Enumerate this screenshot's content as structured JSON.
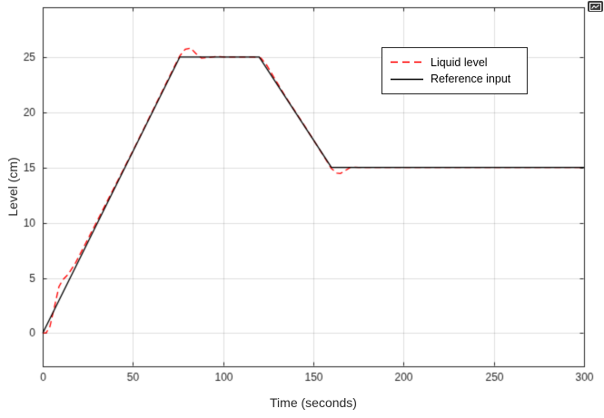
{
  "figure": {
    "background": "#ffffff",
    "popout_icon": "mini-chart-popout-icon"
  },
  "chart_data": {
    "type": "line",
    "title": "",
    "xlabel": "Time (seconds)",
    "ylabel": "Level (cm)",
    "xlim": [
      0,
      300
    ],
    "ylim": [
      -3,
      29.5
    ],
    "xticks": [
      0,
      50,
      100,
      150,
      200,
      250,
      300
    ],
    "yticks": [
      0,
      5,
      10,
      15,
      20,
      25
    ],
    "grid": true,
    "axis_color": "#262626",
    "grid_color": "rgba(38,38,38,0.15)",
    "legend": {
      "position": "upper-right-inside",
      "entries": [
        {
          "label": "Liquid level",
          "color": "#ff0000",
          "style": "dashed"
        },
        {
          "label": "Reference input",
          "color": "#000000",
          "style": "solid"
        }
      ]
    },
    "series": [
      {
        "name": "Liquid level",
        "color": "#ff0000",
        "style": "dashed",
        "points": [
          [
            0,
            0
          ],
          [
            2,
            0.05
          ],
          [
            4,
            0.6
          ],
          [
            6,
            2.0
          ],
          [
            9,
            4.2
          ],
          [
            11,
            4.8
          ],
          [
            14,
            5.3
          ],
          [
            18,
            6.3
          ],
          [
            25,
            8.5
          ],
          [
            50,
            16.5
          ],
          [
            72,
            23.8
          ],
          [
            76,
            25.1
          ],
          [
            79,
            25.7
          ],
          [
            82,
            25.8
          ],
          [
            85,
            25.3
          ],
          [
            88,
            24.9
          ],
          [
            92,
            24.95
          ],
          [
            96,
            25.05
          ],
          [
            101,
            25
          ],
          [
            117,
            25
          ],
          [
            121,
            24.9
          ],
          [
            124,
            24.3
          ],
          [
            128,
            23.2
          ],
          [
            135,
            21.3
          ],
          [
            145,
            18.8
          ],
          [
            152,
            17.0
          ],
          [
            157,
            15.7
          ],
          [
            160,
            14.9
          ],
          [
            163,
            14.5
          ],
          [
            165,
            14.45
          ],
          [
            168,
            14.75
          ],
          [
            171,
            15.05
          ],
          [
            175,
            15
          ],
          [
            300,
            15
          ]
        ]
      },
      {
        "name": "Reference input",
        "color": "#000000",
        "style": "solid",
        "points": [
          [
            0,
            0
          ],
          [
            76,
            25
          ],
          [
            120,
            25
          ],
          [
            160,
            15
          ],
          [
            300,
            15
          ]
        ]
      }
    ]
  }
}
